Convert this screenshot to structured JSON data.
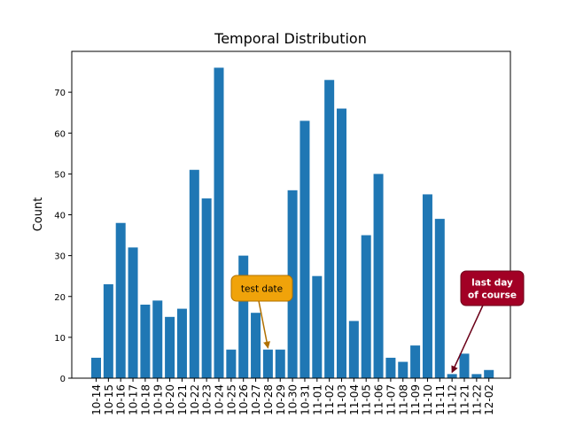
{
  "chart_data": {
    "type": "bar",
    "title": "Temporal Distribution",
    "xlabel": "",
    "ylabel": "Count",
    "ylim": [
      0,
      80
    ],
    "yticks": [
      0,
      10,
      20,
      30,
      40,
      50,
      60,
      70
    ],
    "categories": [
      "10-14",
      "10-15",
      "10-16",
      "10-17",
      "10-18",
      "10-19",
      "10-20",
      "10-21",
      "10-22",
      "10-23",
      "10-24",
      "10-25",
      "10-26",
      "10-27",
      "10-28",
      "10-29",
      "10-30",
      "10-31",
      "11-01",
      "11-02",
      "11-03",
      "11-04",
      "11-05",
      "11-06",
      "11-07",
      "11-08",
      "11-09",
      "11-10",
      "11-11",
      "11-12",
      "11-21",
      "11-22",
      "12-02"
    ],
    "values": [
      5,
      23,
      38,
      32,
      18,
      19,
      15,
      17,
      51,
      44,
      76,
      7,
      30,
      16,
      7,
      7,
      46,
      63,
      25,
      73,
      66,
      14,
      35,
      50,
      5,
      4,
      8,
      45,
      39,
      1,
      6,
      1,
      2
    ],
    "bar_color": "#1f77b4",
    "grid": false,
    "annotations": [
      {
        "text": "test date",
        "category": "10-28",
        "value": 7,
        "box_color": "#f0a30a",
        "text_color": "#000000",
        "arrow_color": "#b07000"
      },
      {
        "text": "last day\nof course",
        "category": "11-12",
        "value": 1,
        "box_color": "#a20025",
        "text_color": "#ffffff",
        "arrow_color": "#6b0018"
      }
    ]
  }
}
